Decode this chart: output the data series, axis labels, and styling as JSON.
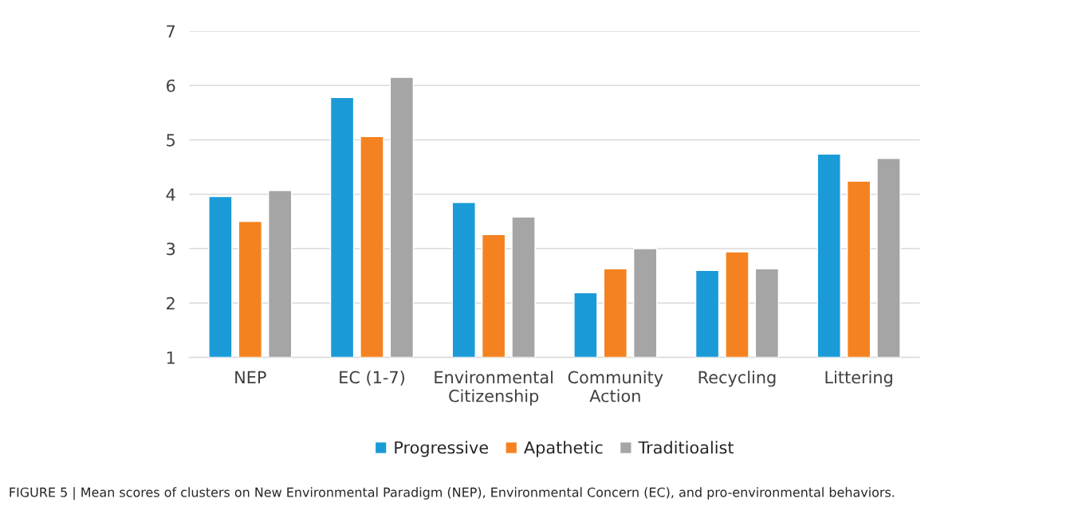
{
  "chart_data": {
    "type": "bar",
    "categories": [
      "NEP",
      "EC (1-7)",
      "Environmental\nCitizenship",
      "Community\nAction",
      "Recycling",
      "Littering"
    ],
    "series": [
      {
        "name": "Progressive",
        "color": "#1a9bd7",
        "values": [
          3.96,
          5.78,
          3.85,
          2.19,
          2.6,
          4.74
        ]
      },
      {
        "name": "Apathetic",
        "color": "#f58220",
        "values": [
          3.5,
          5.06,
          3.26,
          2.63,
          2.94,
          4.24
        ]
      },
      {
        "name": "Traditioalist",
        "color": "#a5a5a5",
        "values": [
          4.07,
          6.15,
          3.58,
          3.0,
          2.63,
          4.66
        ]
      }
    ],
    "ylim": [
      1,
      7
    ],
    "yticks": [
      1,
      2,
      3,
      4,
      5,
      6,
      7
    ],
    "grid": "y",
    "legend": "bottom",
    "annotations": [
      "FIGURE 5 | Mean scores of clusters on New Environmental Paradigm (NEP), Environmental Concern (EC), and pro-environmental behaviors."
    ]
  }
}
